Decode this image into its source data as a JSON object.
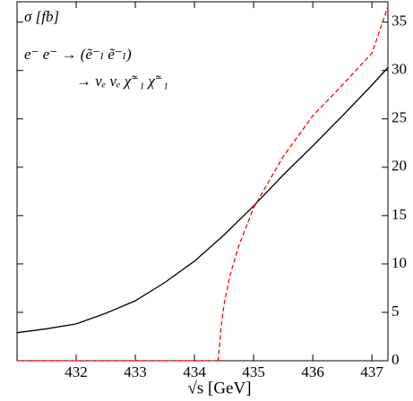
{
  "chart_data": {
    "type": "line",
    "y_label": "σ [fb]",
    "annotations": [
      "e⁻ e⁻ → (ẽ⁻ₗ ẽ⁻ₗ)",
      "→ νₑ νₑ χ̃⁻₁ χ̃⁻₁"
    ],
    "x_label": "√s [GeV]",
    "xlim": [
      431,
      437.27
    ],
    "ylim": [
      0,
      37.1
    ],
    "xticks": [
      432,
      433,
      434,
      435,
      436,
      437
    ],
    "yticks": [
      0,
      5,
      10,
      15,
      20,
      25,
      30,
      35
    ],
    "series": [
      {
        "color": "#000000",
        "dashed": false,
        "x": [
          431,
          431.5,
          432,
          432.5,
          433,
          433.5,
          434,
          434.5,
          435,
          435.5,
          436,
          436.5,
          437,
          437.27
        ],
        "values": [
          2.9,
          3.3,
          3.8,
          4.9,
          6.2,
          8.1,
          10.3,
          13.0,
          16.0,
          19.2,
          22.2,
          25.3,
          28.5,
          30.3
        ]
      },
      {
        "color": "#ff0000",
        "dashed": true,
        "x": [
          431,
          434.4,
          434.45,
          434.5,
          434.6,
          434.75,
          435,
          435.5,
          436,
          436.5,
          437,
          437.27
        ],
        "values": [
          0,
          0,
          3.5,
          5.8,
          8.8,
          11.9,
          15.8,
          21.1,
          25.3,
          28.5,
          31.8,
          36.6
        ]
      }
    ]
  }
}
